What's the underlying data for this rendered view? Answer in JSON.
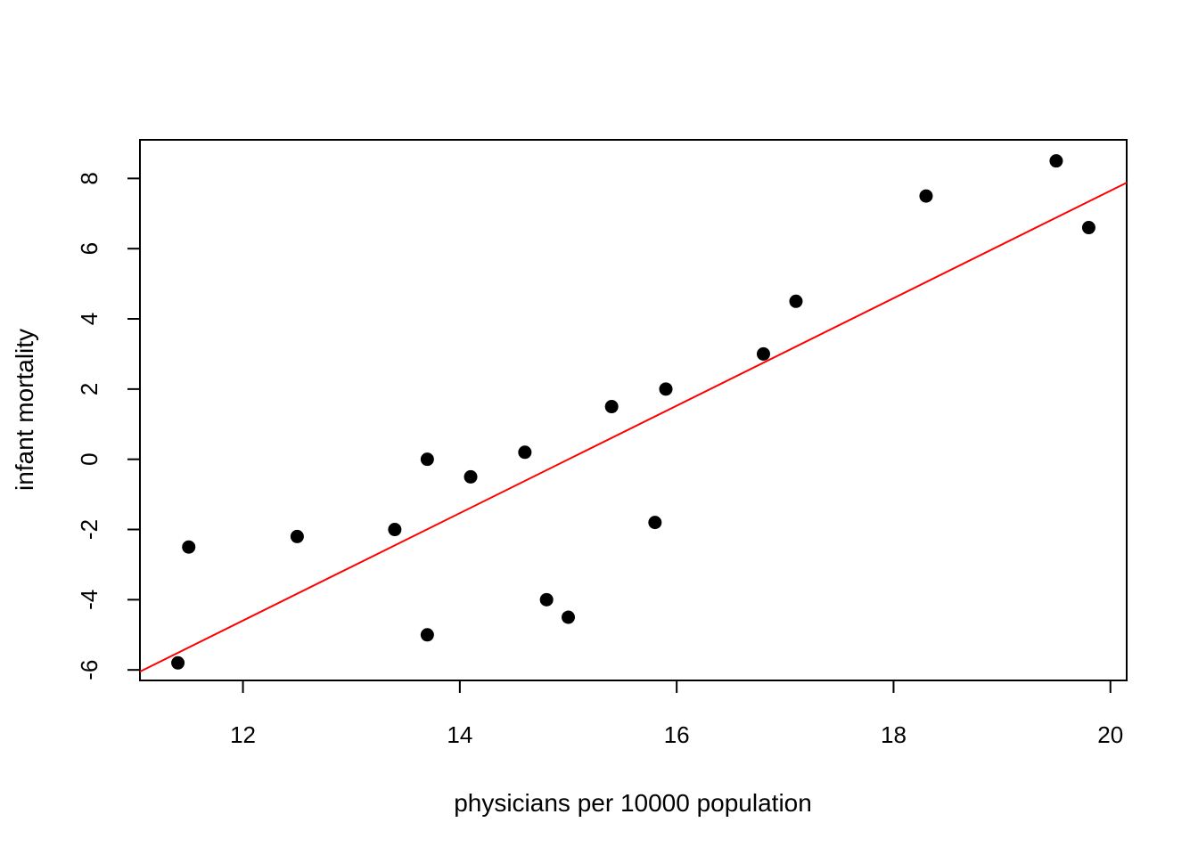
{
  "chart_data": {
    "type": "scatter",
    "title": "",
    "xlabel": "physicians per 10000 population",
    "ylabel": "infant mortality",
    "xlim": [
      11.05,
      20.15
    ],
    "ylim": [
      -6.3,
      9.1
    ],
    "x_ticks": [
      12,
      14,
      16,
      18,
      20
    ],
    "x_tick_labels": [
      "12",
      "14",
      "16",
      "18",
      "20"
    ],
    "y_ticks": [
      -6,
      -4,
      -2,
      0,
      2,
      4,
      6,
      8
    ],
    "y_tick_labels": [
      "-6",
      "-4",
      "-2",
      "0",
      "2",
      "4",
      "6",
      "8"
    ],
    "grid": false,
    "series": [
      {
        "name": "points",
        "x": [
          11.4,
          11.5,
          12.5,
          13.4,
          13.7,
          13.7,
          14.1,
          14.6,
          14.8,
          15.0,
          15.4,
          15.8,
          15.9,
          16.8,
          17.1,
          18.3,
          19.5,
          19.8
        ],
        "y": [
          -5.8,
          -2.5,
          -2.2,
          -2.0,
          0.0,
          -5.0,
          -0.5,
          0.2,
          -4.0,
          -4.5,
          1.5,
          -1.8,
          2.0,
          3.0,
          4.5,
          7.5,
          8.5,
          6.6
        ],
        "color": "#000000"
      }
    ],
    "fit_line": {
      "name": "regression line",
      "x": [
        11.05,
        20.15
      ],
      "y": [
        -6.05,
        7.88
      ],
      "color": "#ff0000"
    }
  }
}
